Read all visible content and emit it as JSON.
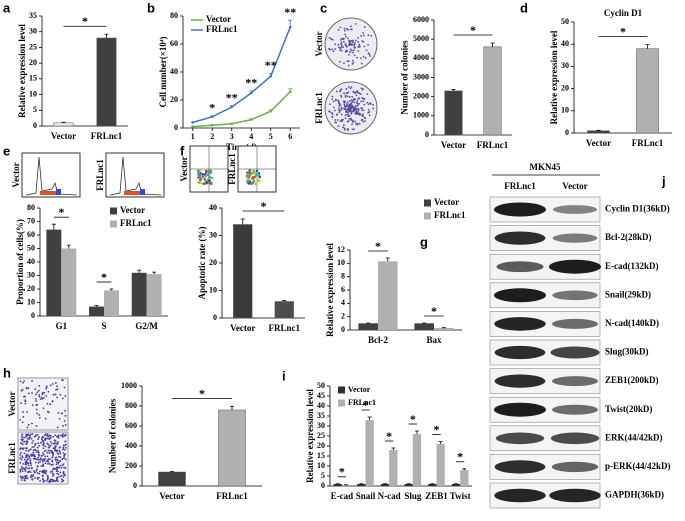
{
  "chart_data": [
    {
      "panel": "a",
      "type": "bar",
      "ylabel": "Relative expression level",
      "categories": [
        "Vector",
        "FRLnc1"
      ],
      "values": [
        1,
        28
      ],
      "errors": [
        0.2,
        1.2
      ],
      "colors": [
        "#e8e8e8",
        "#404040"
      ],
      "ylim": [
        0,
        35
      ],
      "yticks": [
        0,
        5,
        10,
        15,
        20,
        25,
        30,
        35
      ],
      "significance": "*"
    },
    {
      "panel": "b",
      "type": "line",
      "xlabel": "Time(d)",
      "ylabel": "Cell number(×10⁴)",
      "x": [
        1,
        2,
        3,
        4,
        5,
        6
      ],
      "xlim": [
        0.5,
        6.5
      ],
      "xticks": [
        1,
        2,
        3,
        4,
        5,
        6
      ],
      "ylim": [
        0,
        80
      ],
      "yticks": [
        0,
        20,
        40,
        60,
        80
      ],
      "legend": "top-left",
      "series": [
        {
          "name": "Vector",
          "color": "#6ab04c",
          "values": [
            1,
            2,
            3,
            6,
            12,
            26
          ],
          "errors": [
            0.2,
            0.3,
            0.4,
            0.6,
            1,
            2
          ]
        },
        {
          "name": "FRLnc1",
          "color": "#4472c4",
          "values": [
            4,
            8,
            15,
            25,
            37,
            72
          ],
          "errors": [
            0.3,
            0.6,
            1,
            1.5,
            2,
            5
          ]
        }
      ],
      "significance": [
        null,
        "*",
        "**",
        "**",
        "**",
        "**"
      ]
    },
    {
      "panel": "c",
      "type": "bar",
      "image_labels": [
        "Vector",
        "FRLnc1"
      ],
      "ylabel": "Number of colonies",
      "categories": [
        "Vector",
        "FRLnc1"
      ],
      "values": [
        2300,
        4600
      ],
      "errors": [
        80,
        200
      ],
      "colors": [
        "#404040",
        "#b0b0b0"
      ],
      "ylim": [
        0,
        6000
      ],
      "yticks": [
        0,
        1000,
        2000,
        3000,
        4000,
        5000,
        6000
      ],
      "significance": "*"
    },
    {
      "panel": "d",
      "type": "bar",
      "title": "Cyclin D1",
      "ylabel": "Relative expression level",
      "categories": [
        "Vector",
        "FRLnc1"
      ],
      "values": [
        1,
        38
      ],
      "errors": [
        0.2,
        1.8
      ],
      "colors": [
        "#404040",
        "#b0b0b0"
      ],
      "ylim": [
        0,
        50
      ],
      "yticks": [
        0,
        10,
        20,
        30,
        40,
        50
      ],
      "significance": "*"
    },
    {
      "panel": "e",
      "type": "bar",
      "image_labels": [
        "Vector",
        "FRLnc1"
      ],
      "ylabel": "Proportion of cells(%)",
      "categories": [
        "G1",
        "S",
        "G2/M"
      ],
      "series": [
        {
          "name": "Vector",
          "color": "#404040",
          "values": [
            64,
            7,
            32
          ],
          "errors": [
            4,
            0.8,
            2
          ]
        },
        {
          "name": "FRLnc1",
          "color": "#b0b0b0",
          "values": [
            50,
            19,
            31
          ],
          "errors": [
            2.5,
            1,
            1.5
          ]
        }
      ],
      "ylim": [
        0,
        80
      ],
      "yticks": [
        0,
        10,
        20,
        30,
        40,
        50,
        60,
        70,
        80
      ],
      "legend": "top-right",
      "significance": [
        "*",
        "*",
        null
      ]
    },
    {
      "panel": "f",
      "type": "bar",
      "image_labels": [
        "Vector",
        "FRLnc1"
      ],
      "ylabel": "Apoptotic rate (%)",
      "categories": [
        "Vector",
        "FRLnc1"
      ],
      "values": [
        34,
        6
      ],
      "errors": [
        2,
        0.3
      ],
      "colors": [
        "#3a3a3a",
        "#4d4d4d"
      ],
      "ylim": [
        0,
        40
      ],
      "yticks": [
        0,
        10,
        20,
        30,
        40
      ],
      "significance": "*"
    },
    {
      "panel": "g",
      "type": "bar",
      "ylabel": "Relative expression level",
      "categories": [
        "Bcl-2",
        "Bax"
      ],
      "series": [
        {
          "name": "Vector",
          "color": "#404040",
          "values": [
            1,
            1
          ],
          "errors": [
            0.05,
            0.05
          ]
        },
        {
          "name": "FRLnc1",
          "color": "#b0b0b0",
          "values": [
            10.3,
            0.3
          ],
          "errors": [
            0.5,
            0.05
          ]
        }
      ],
      "ylim": [
        0,
        12
      ],
      "yticks": [
        0,
        2,
        4,
        6,
        8,
        10,
        12
      ],
      "legend": "above-right",
      "significance": [
        "*",
        "*"
      ]
    },
    {
      "panel": "h",
      "type": "bar",
      "image_labels": [
        "Vector",
        "FRLnc1"
      ],
      "ylabel": "Number of colonies",
      "categories": [
        "Vector",
        "FRLnc1"
      ],
      "values": [
        140,
        760
      ],
      "errors": [
        5,
        35
      ],
      "colors": [
        "#404040",
        "#b0b0b0"
      ],
      "ylim": [
        0,
        1000
      ],
      "yticks": [
        0,
        200,
        400,
        600,
        800,
        1000
      ],
      "significance": "*"
    },
    {
      "panel": "i",
      "type": "bar",
      "ylabel": "Relative expression level",
      "categories": [
        "E-cad",
        "Snail",
        "N-cad",
        "Slug",
        "ZEB1",
        "Twist"
      ],
      "series": [
        {
          "name": "Vector",
          "color": "#303030",
          "values": [
            1,
            1,
            1,
            1,
            1,
            1
          ],
          "errors": [
            0.1,
            0.1,
            0.1,
            0.1,
            0.1,
            0.1
          ]
        },
        {
          "name": "FRLnc1",
          "color": "#b0b0b0",
          "values": [
            0.5,
            33,
            18,
            26,
            21,
            8
          ],
          "errors": [
            0.1,
            1.5,
            1,
            1.5,
            1.2,
            0.6
          ]
        }
      ],
      "ylim": [
        0,
        50
      ],
      "yticks": [
        0,
        5,
        10,
        15,
        20,
        25,
        30,
        35,
        40,
        45,
        50
      ],
      "legend": "top-left",
      "significance": [
        "*",
        "*",
        "*",
        "*",
        "*",
        "*"
      ]
    }
  ],
  "western_blot": {
    "panel": "j",
    "cell_line": "MKN45",
    "columns": [
      "FRLnc1",
      "Vector"
    ],
    "rows": [
      "Cyclin D1(36kD)",
      "Bcl-2(28kD)",
      "E-cad(132kD)",
      "Snail(29kD)",
      "N-cad(140kD)",
      "Slug(30kD)",
      "ZEB1(200kD)",
      "Twist(20kD)",
      "ERK(44/42kD)",
      "p-ERK(44/42kD)",
      "GAPDH(36kD)"
    ]
  }
}
